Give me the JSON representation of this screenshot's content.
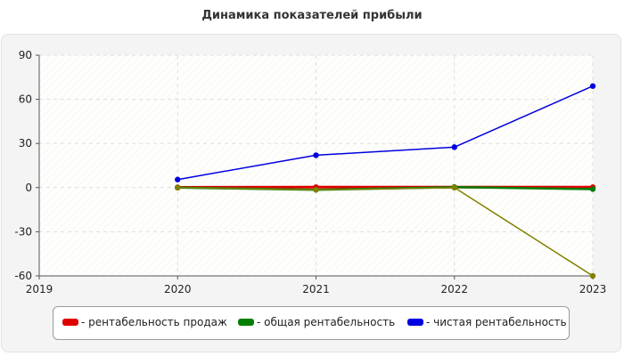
{
  "chart_data": {
    "type": "line",
    "title": "Динамика показателей прибыли",
    "xlabel": "",
    "ylabel": "",
    "x_ticks": [
      "2019",
      "2020",
      "2021",
      "2022",
      "2023"
    ],
    "y_ticks": [
      "90",
      "60",
      "30",
      "0",
      "-30",
      "-60"
    ],
    "xlim": [
      2019,
      2023
    ],
    "ylim": [
      -60,
      90
    ],
    "grid": true,
    "legend_position": "bottom",
    "series": [
      {
        "name": "- рентабельность продаж",
        "color": "#e00000",
        "x": [
          2020,
          2021,
          2022,
          2023
        ],
        "y": [
          0.2,
          0.3,
          0.3,
          0.3
        ]
      },
      {
        "name": "- общая рентабельность",
        "color": "#008000",
        "x": [
          2020,
          2021,
          2022,
          2023
        ],
        "y": [
          0,
          -1.5,
          0.3,
          -1
        ]
      },
      {
        "name": "- чистая рентабельность",
        "color": "#0000e0",
        "x": [
          2020,
          2021,
          2022,
          2023
        ],
        "y": [
          5.5,
          22,
          27.5,
          69
        ]
      },
      {
        "name": "",
        "color": "#808000",
        "x": [
          2020,
          2021,
          2022,
          2023
        ],
        "y": [
          0,
          -1.5,
          0,
          -60
        ]
      }
    ]
  }
}
